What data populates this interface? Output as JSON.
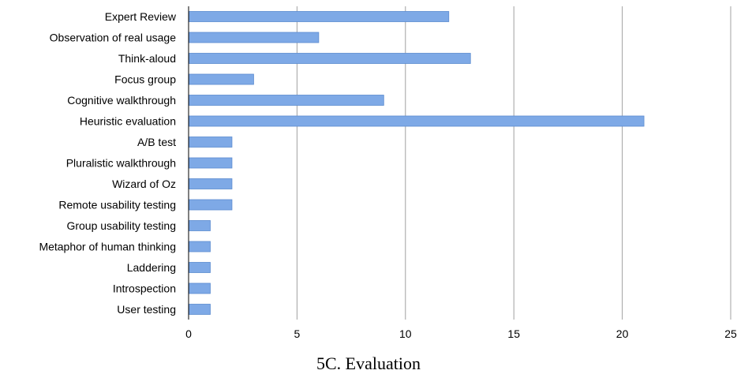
{
  "caption": "5C. Evaluation",
  "chart_data": {
    "type": "bar",
    "orientation": "horizontal",
    "title": "",
    "xlabel": "",
    "ylabel": "",
    "categories": [
      "Expert Review",
      "Observation of real usage",
      "Think-aloud",
      "Focus group",
      "Cognitive walkthrough",
      "Heuristic evaluation",
      "A/B test",
      "Pluralistic walkthrough",
      "Wizard of Oz",
      "Remote usability testing",
      "Group usability testing",
      "Metaphor of human thinking",
      "Laddering",
      "Introspection",
      "User testing"
    ],
    "values": [
      12,
      6,
      13,
      3,
      9,
      21,
      2,
      2,
      2,
      2,
      1,
      1,
      1,
      1,
      1
    ],
    "xlim": [
      0,
      25
    ],
    "xticks": [
      0,
      5,
      10,
      15,
      20,
      25
    ],
    "grid": "vertical",
    "legend": "none",
    "colors": {
      "bar_fill": "#7ea9e6",
      "bar_stroke": "#5b8bd0",
      "grid": "#a0a0a0",
      "axis": "#000000"
    }
  }
}
